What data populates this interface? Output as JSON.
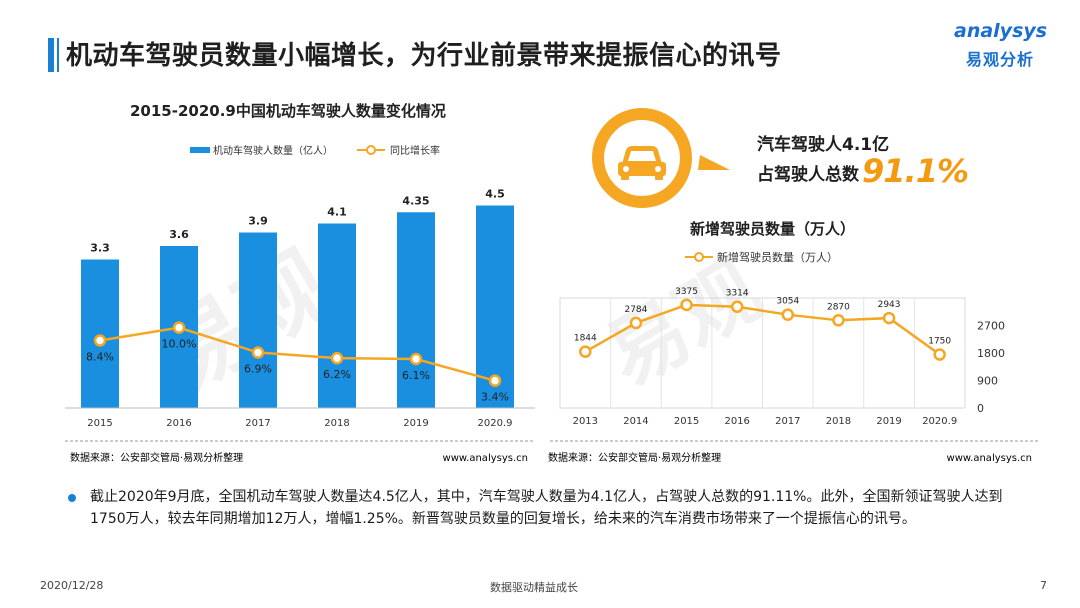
{
  "header": {
    "title": "机动车驾驶员数量小幅增长，为行业前景带来提振信心的讯号",
    "logo_en": "analysys",
    "logo_cn": "易观分析"
  },
  "colors": {
    "blue": "#1a8fe0",
    "orange": "#f5a623",
    "accent": "#f39a12"
  },
  "chart_data": [
    {
      "type": "bar",
      "title": "2015-2020.9中国机动车驾驶人数量变化情况",
      "categories": [
        "2015",
        "2016",
        "2017",
        "2018",
        "2019",
        "2020.9"
      ],
      "series": [
        {
          "name": "机动车驾驶人数量（亿人）",
          "kind": "bar",
          "values": [
            3.3,
            3.6,
            3.9,
            4.1,
            4.35,
            4.5
          ],
          "labels": [
            "3.3",
            "3.6",
            "3.9",
            "4.1",
            "4.35",
            "4.5"
          ]
        },
        {
          "name": "同比增长率",
          "kind": "line",
          "values": [
            8.4,
            10.0,
            6.9,
            6.2,
            6.1,
            3.4
          ],
          "labels": [
            "8.4%",
            "10.0%",
            "6.9%",
            "6.2%",
            "6.1%",
            "3.4%"
          ]
        }
      ],
      "ylim": [
        0,
        5
      ],
      "y2lim": [
        0,
        28
      ],
      "grid": false,
      "legend": "top",
      "source": "数据来源：公安部交管局·易观分析整理",
      "url": "www.analysys.cn"
    },
    {
      "type": "line",
      "title": "新增驾驶员数量（万人）",
      "categories": [
        "2013",
        "2014",
        "2015",
        "2016",
        "2017",
        "2018",
        "2019",
        "2020.9"
      ],
      "series": [
        {
          "name": "新增驾驶员数量（万人）",
          "values": [
            1844,
            2784,
            3375,
            3314,
            3054,
            2870,
            2943,
            1750
          ],
          "labels": [
            "1844",
            "2784",
            "3375",
            "3314",
            "3054",
            "2870",
            "2943",
            "1750"
          ]
        }
      ],
      "ylim": [
        0,
        3600
      ],
      "yticks": [
        "0",
        "900",
        "1800",
        "2700"
      ],
      "grid": true,
      "legend": "top",
      "source": "数据来源：公安部交管局·易观分析整理",
      "url": "www.analysys.cn"
    }
  ],
  "car_callout": {
    "line1": "汽车驾驶人4.1亿",
    "line2": "占驾驶人总数",
    "percent": "91.1%",
    "icon": "car-icon"
  },
  "note": "截止2020年9月底，全国机动车驾驶人数量达4.5亿人，其中，汽车驾驶人数量为4.1亿人，占驾驶人总数的91.11%。此外，全国新领证驾驶人达到1750万人，较去年同期增加12万人，增幅1.25%。新晋驾驶员数量的回复增长，给未来的汽车消费市场带来了一个提振信心的讯号。",
  "footer": {
    "date": "2020/12/28",
    "slogan": "数据驱动精益成长",
    "page": "7"
  }
}
